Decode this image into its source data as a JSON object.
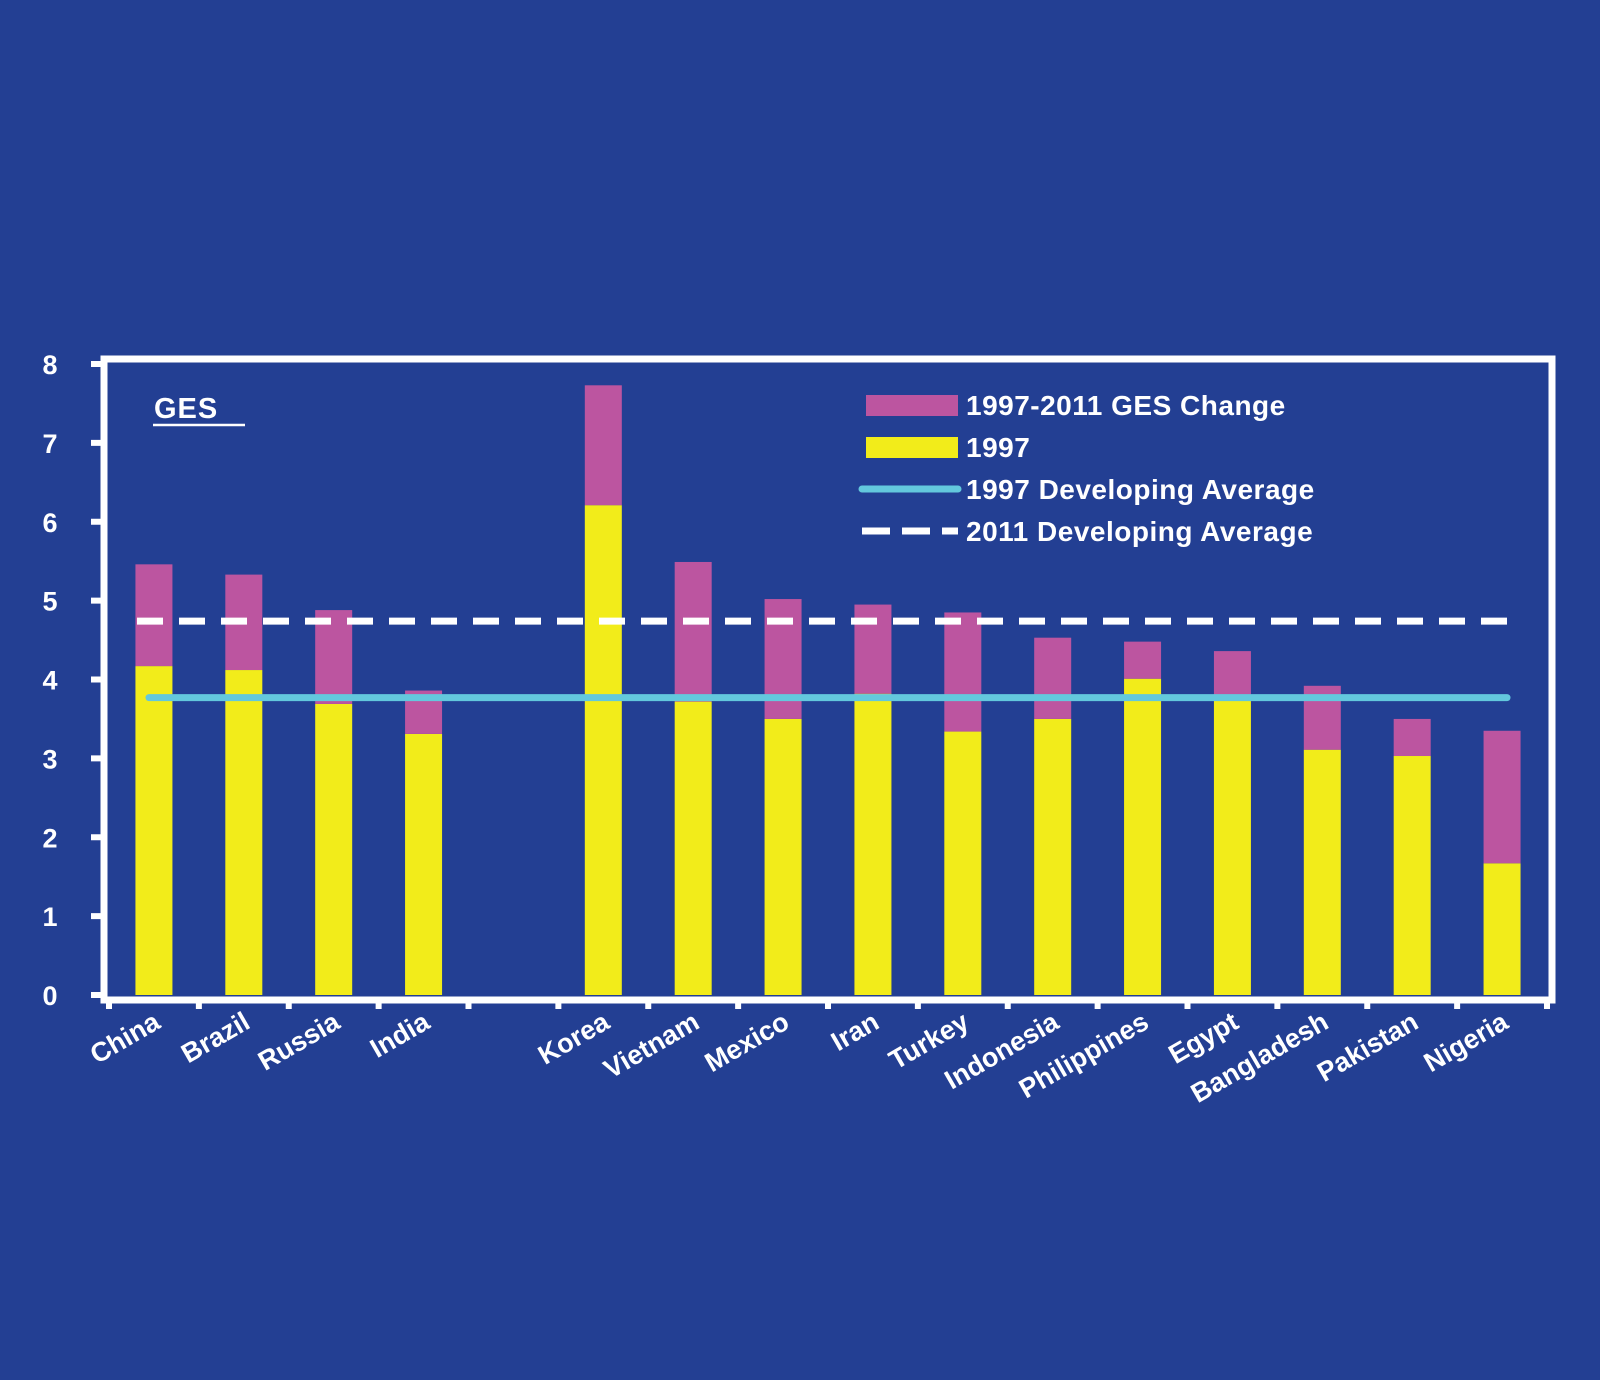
{
  "chart_data": {
    "type": "bar",
    "stacked": true,
    "title": "GES",
    "xlabel": "",
    "ylabel": "",
    "ylim": [
      0,
      8
    ],
    "yticks": [
      0,
      1,
      2,
      3,
      4,
      5,
      6,
      7,
      8
    ],
    "grid": false,
    "legend_position": "top-right",
    "categories": [
      "China",
      "Brazil",
      "Russia",
      "India",
      "",
      "Korea",
      "Vietnam",
      "Mexico",
      "Iran",
      "Turkey",
      "Indonesia",
      "Philippines",
      "Egypt",
      "Bangladesh",
      "Pakistan",
      "Nigeria"
    ],
    "series": [
      {
        "name": "1997",
        "color": "#f2ec1a",
        "values": [
          4.17,
          4.12,
          3.69,
          3.31,
          null,
          6.21,
          3.72,
          3.5,
          3.82,
          3.34,
          3.5,
          4.01,
          3.75,
          3.11,
          3.03,
          1.67
        ]
      },
      {
        "name": "1997-2011 GES Change",
        "color": "#bc55a0",
        "values": [
          1.29,
          1.21,
          1.19,
          0.55,
          null,
          1.52,
          1.77,
          1.52,
          1.13,
          1.51,
          1.03,
          0.47,
          0.61,
          0.81,
          0.47,
          1.68
        ]
      }
    ],
    "totals_2011": [
      5.46,
      5.33,
      4.88,
      3.86,
      null,
      7.73,
      5.49,
      5.02,
      4.95,
      4.85,
      4.53,
      4.48,
      4.36,
      3.92,
      3.5,
      3.35
    ],
    "reference_lines": [
      {
        "name": "1997 Developing Average",
        "value": 3.77,
        "color": "#63c8dd",
        "style": "solid"
      },
      {
        "name": "2011 Developing Average",
        "value": 4.74,
        "color": "#ffffff",
        "style": "dashed"
      }
    ],
    "legend": [
      {
        "label": "1997-2011 GES Change",
        "kind": "bar",
        "color": "#bc55a0"
      },
      {
        "label": "1997",
        "kind": "bar",
        "color": "#f2ec1a"
      },
      {
        "label": "1997 Developing Average",
        "kind": "solid-line",
        "color": "#63c8dd"
      },
      {
        "label": "2011 Developing Average",
        "kind": "dashed-line",
        "color": "#ffffff"
      }
    ]
  },
  "colors": {
    "background": "#233f93",
    "axis": "#ffffff",
    "text": "#ffffff"
  }
}
